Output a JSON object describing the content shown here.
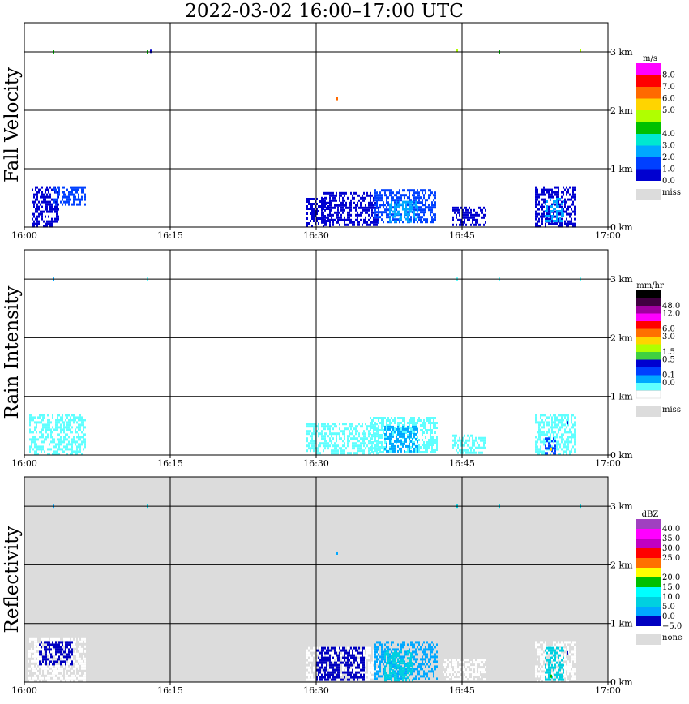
{
  "title": "2022-03-02   16:00–17:00 UTC",
  "chart_data": [
    {
      "type": "heatmap",
      "id": "fall-velocity",
      "ylabel": "Fall Velocity",
      "xlim": [
        "16:00",
        "17:00"
      ],
      "ylim_km": [
        0,
        3.5
      ],
      "x_ticks": [
        "16:00",
        "16:15",
        "16:30",
        "16:45",
        "17:00"
      ],
      "y_ticks": [
        "0 km",
        "1 km",
        "2 km",
        "3 km"
      ],
      "background": "#ffffff",
      "legend": {
        "unit": "m/s",
        "levels": [
          "8.0",
          "7.0",
          "6.0",
          "5.0",
          "4.0",
          "3.0",
          "2.0",
          "1.0",
          "0.0"
        ],
        "colors": [
          "#ff00ff",
          "#ff0000",
          "#ff6a00",
          "#ffd400",
          "#b0ff00",
          "#00c000",
          "#00e8d0",
          "#00a8ff",
          "#0040ff",
          "#0000d0"
        ],
        "missing_label": "miss",
        "missing_color": "#dcdcdc"
      },
      "clusters": [
        {
          "t0": "16:00:45",
          "t1": "16:03:30",
          "h0": 0.02,
          "h1": 0.7,
          "color": "#0000d0"
        },
        {
          "t0": "16:03:00",
          "t1": "16:06:20",
          "h0": 0.4,
          "h1": 0.7,
          "color": "#0040ff"
        },
        {
          "t0": "16:29:00",
          "t1": "16:31:30",
          "h0": 0.02,
          "h1": 0.5,
          "color": "#0000d0"
        },
        {
          "t0": "16:30:30",
          "t1": "16:36:30",
          "h0": 0.05,
          "h1": 0.6,
          "color": "#0000d0"
        },
        {
          "t0": "16:36:00",
          "t1": "16:42:20",
          "h0": 0.1,
          "h1": 0.65,
          "color": "#0040ff"
        },
        {
          "t0": "16:37:30",
          "t1": "16:40:30",
          "h0": 0.1,
          "h1": 0.45,
          "color": "#00a8ff"
        },
        {
          "t0": "16:44:00",
          "t1": "16:47:30",
          "h0": 0.05,
          "h1": 0.35,
          "color": "#0000d0"
        },
        {
          "t0": "16:52:30",
          "t1": "16:56:40",
          "h0": 0.02,
          "h1": 0.7,
          "color": "#0000d0"
        },
        {
          "t0": "16:53:30",
          "t1": "16:55:30",
          "h0": 0.1,
          "h1": 0.5,
          "color": "#00a8ff"
        }
      ],
      "points": [
        {
          "t": "16:03:00",
          "h": 3.0,
          "color": "#00c000"
        },
        {
          "t": "16:12:40",
          "h": 3.0,
          "color": "#00c000"
        },
        {
          "t": "16:13:00",
          "h": 3.01,
          "color": "#0000d0"
        },
        {
          "t": "16:32:10",
          "h": 2.2,
          "color": "#ff6a00"
        },
        {
          "t": "16:44:30",
          "h": 3.02,
          "color": "#b0ff00"
        },
        {
          "t": "16:48:50",
          "h": 3.0,
          "color": "#00c000"
        },
        {
          "t": "16:57:10",
          "h": 3.02,
          "color": "#b0ff00"
        }
      ]
    },
    {
      "type": "heatmap",
      "id": "rain-intensity",
      "ylabel": "Rain Intensity",
      "xlim": [
        "16:00",
        "17:00"
      ],
      "ylim_km": [
        0,
        3.5
      ],
      "x_ticks": [
        "16:00",
        "16:15",
        "16:30",
        "16:45",
        "17:00"
      ],
      "y_ticks": [
        "0 km",
        "1 km",
        "2 km",
        "3 km"
      ],
      "background": "#ffffff",
      "legend": {
        "unit": "mm/hr",
        "levels": [
          "48.0",
          "12.0",
          "6.0",
          "3.0",
          "1.5",
          "0.5",
          "0.1",
          "0.0"
        ],
        "colors": [
          "#000000",
          "#400040",
          "#a000a0",
          "#ff00ff",
          "#ff0000",
          "#ff7000",
          "#ffd400",
          "#b0ff00",
          "#40d040",
          "#0000d0",
          "#0040ff",
          "#00a8ff",
          "#60ffff",
          "#ffffff"
        ],
        "missing_label": "miss",
        "missing_color": "#dcdcdc"
      },
      "clusters": [
        {
          "t0": "16:00:30",
          "t1": "16:06:20",
          "h0": 0.02,
          "h1": 0.7,
          "color": "#60ffff"
        },
        {
          "t0": "16:29:00",
          "t1": "16:36:30",
          "h0": 0.02,
          "h1": 0.55,
          "color": "#60ffff"
        },
        {
          "t0": "16:35:30",
          "t1": "16:42:30",
          "h0": 0.05,
          "h1": 0.65,
          "color": "#60ffff"
        },
        {
          "t0": "16:37:00",
          "t1": "16:40:30",
          "h0": 0.05,
          "h1": 0.5,
          "color": "#00a8ff"
        },
        {
          "t0": "16:44:00",
          "t1": "16:47:30",
          "h0": 0.05,
          "h1": 0.35,
          "color": "#60ffff"
        },
        {
          "t0": "16:52:30",
          "t1": "16:56:40",
          "h0": 0.02,
          "h1": 0.7,
          "color": "#60ffff"
        },
        {
          "t0": "16:53:30",
          "t1": "16:54:40",
          "h0": 0.05,
          "h1": 0.3,
          "color": "#0040ff"
        }
      ],
      "points": [
        {
          "t": "16:03:00",
          "h": 3.0,
          "color": "#00a8ff"
        },
        {
          "t": "16:12:40",
          "h": 3.0,
          "color": "#60ffff"
        },
        {
          "t": "16:44:30",
          "h": 3.0,
          "color": "#60ffff"
        },
        {
          "t": "16:48:50",
          "h": 3.0,
          "color": "#60ffff"
        },
        {
          "t": "16:57:10",
          "h": 3.0,
          "color": "#60ffff"
        },
        {
          "t": "16:54:10",
          "h": 0.1,
          "color": "#ffd400"
        },
        {
          "t": "16:55:50",
          "h": 0.55,
          "color": "#0000d0"
        }
      ]
    },
    {
      "type": "heatmap",
      "id": "reflectivity",
      "ylabel": "Reflectivity",
      "xlim": [
        "16:00",
        "17:00"
      ],
      "ylim_km": [
        0,
        3.5
      ],
      "x_ticks": [
        "16:00",
        "16:15",
        "16:30",
        "16:45",
        "17:00"
      ],
      "y_ticks": [
        "0 km",
        "1 km",
        "2 km",
        "3 km"
      ],
      "background": "#dcdcdc",
      "legend": {
        "unit": "dBZ",
        "levels": [
          "40.0",
          "35.0",
          "30.0",
          "25.0",
          "20.0",
          "15.0",
          "10.0",
          "5.0",
          "0.0",
          "−5.0"
        ],
        "colors": [
          "#a040c0",
          "#ff00ff",
          "#c000c0",
          "#ff0000",
          "#ff7000",
          "#ffff00",
          "#00c000",
          "#00ffff",
          "#00d0e0",
          "#00a8ff",
          "#0000c0"
        ],
        "missing_label": "none",
        "missing_color": "#dcdcdc"
      },
      "clusters": [
        {
          "t0": "16:00:20",
          "t1": "16:06:20",
          "h0": 0.02,
          "h1": 0.75,
          "color": "#ffffff"
        },
        {
          "t0": "16:01:30",
          "t1": "16:05:00",
          "h0": 0.3,
          "h1": 0.7,
          "color": "#0000c0"
        },
        {
          "t0": "16:29:00",
          "t1": "16:36:30",
          "h0": 0.02,
          "h1": 0.6,
          "color": "#ffffff"
        },
        {
          "t0": "16:30:00",
          "t1": "16:35:00",
          "h0": 0.05,
          "h1": 0.6,
          "color": "#0000c0"
        },
        {
          "t0": "16:36:00",
          "t1": "16:42:30",
          "h0": 0.05,
          "h1": 0.7,
          "color": "#00a8ff"
        },
        {
          "t0": "16:37:00",
          "t1": "16:40:00",
          "h0": 0.05,
          "h1": 0.55,
          "color": "#00d0e0"
        },
        {
          "t0": "16:43:00",
          "t1": "16:47:30",
          "h0": 0.05,
          "h1": 0.4,
          "color": "#ffffff"
        },
        {
          "t0": "16:52:30",
          "t1": "16:56:40",
          "h0": 0.02,
          "h1": 0.7,
          "color": "#ffffff"
        },
        {
          "t0": "16:53:30",
          "t1": "16:55:30",
          "h0": 0.05,
          "h1": 0.6,
          "color": "#00d0e0"
        }
      ],
      "points": [
        {
          "t": "16:03:00",
          "h": 3.0,
          "color": "#00a8ff"
        },
        {
          "t": "16:12:40",
          "h": 3.0,
          "color": "#00d0e0"
        },
        {
          "t": "16:32:10",
          "h": 2.2,
          "color": "#00a8ff"
        },
        {
          "t": "16:44:30",
          "h": 3.0,
          "color": "#00d0e0"
        },
        {
          "t": "16:48:50",
          "h": 3.0,
          "color": "#00d0e0"
        },
        {
          "t": "16:57:10",
          "h": 3.0,
          "color": "#00d0e0"
        },
        {
          "t": "16:54:10",
          "h": 0.1,
          "color": "#00c000"
        },
        {
          "t": "16:55:50",
          "h": 0.5,
          "color": "#0000c0"
        }
      ]
    }
  ]
}
